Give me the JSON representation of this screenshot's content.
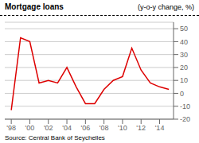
{
  "chart_data": {
    "type": "line",
    "title": "Mortgage loans",
    "subtitle": "(y-o-y change, %)",
    "annotations": [
      "Source: Central Bank of Seychelles"
    ],
    "x": [
      1998,
      1999,
      2000,
      2001,
      2002,
      2003,
      2004,
      2005,
      2006,
      2007,
      2008,
      2009,
      2010,
      2011,
      2012,
      2013,
      2014,
      2015
    ],
    "values": [
      -13,
      43,
      40,
      8,
      10,
      8,
      20,
      5,
      -8,
      -8,
      3,
      10,
      13,
      35,
      18,
      8,
      5,
      3
    ],
    "color": "#dd0000",
    "xlim": [
      1997.3,
      2015.5
    ],
    "xticks": [
      {
        "value": 1998,
        "label": "'98"
      },
      {
        "value": 2000,
        "label": "'00"
      },
      {
        "value": 2002,
        "label": "'02"
      },
      {
        "value": 2004,
        "label": "'04"
      },
      {
        "value": 2006,
        "label": "'06"
      },
      {
        "value": 2008,
        "label": "'08"
      },
      {
        "value": 2010,
        "label": "'10"
      },
      {
        "value": 2012,
        "label": "'12"
      },
      {
        "value": 2014,
        "label": "'14"
      }
    ],
    "ylim": [
      -20,
      55
    ],
    "yticks": [
      -20,
      -10,
      0,
      10,
      20,
      30,
      40,
      50
    ],
    "grid": true
  }
}
